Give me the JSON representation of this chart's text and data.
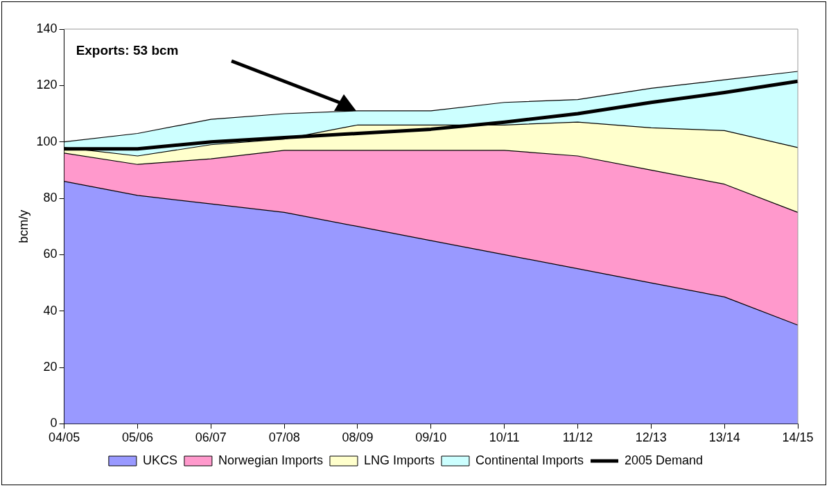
{
  "chart_data": {
    "type": "area",
    "ylabel": "bcm/y",
    "stacked": true,
    "categories": [
      "04/05",
      "05/06",
      "06/07",
      "07/08",
      "08/09",
      "09/10",
      "10/11",
      "11/12",
      "12/13",
      "13/14",
      "14/15"
    ],
    "series": [
      {
        "name": "UKCS",
        "color": "#9999ff",
        "values": [
          86,
          81,
          78,
          75,
          70,
          65,
          60,
          55,
          50,
          45,
          35
        ]
      },
      {
        "name": "Norwegian Imports",
        "color": "#ff99cc",
        "values": [
          10,
          11,
          16,
          22,
          27,
          32,
          37,
          40,
          40,
          40,
          40
        ]
      },
      {
        "name": "LNG Imports",
        "color": "#ffffcc",
        "values": [
          2,
          3,
          5,
          4,
          9,
          9,
          9,
          12,
          15,
          19,
          23
        ]
      },
      {
        "name": "Continental Imports",
        "color": "#ccffff",
        "values": [
          2,
          8,
          9,
          9,
          5,
          5,
          8,
          8,
          14,
          18,
          27
        ]
      },
      {
        "name": "2005 Demand",
        "type": "line",
        "color": "#000000",
        "values": [
          97.5,
          97.5,
          100,
          101.5,
          103,
          104.5,
          107,
          110,
          114,
          117.5,
          121.5
        ]
      }
    ],
    "ylim": [
      0,
      140
    ],
    "yticks": [
      0,
      20,
      40,
      60,
      80,
      100,
      120,
      140
    ],
    "grid": false,
    "legend": "bottom",
    "marker": "none",
    "annotations": [
      "Exports: 53 bcm"
    ]
  }
}
